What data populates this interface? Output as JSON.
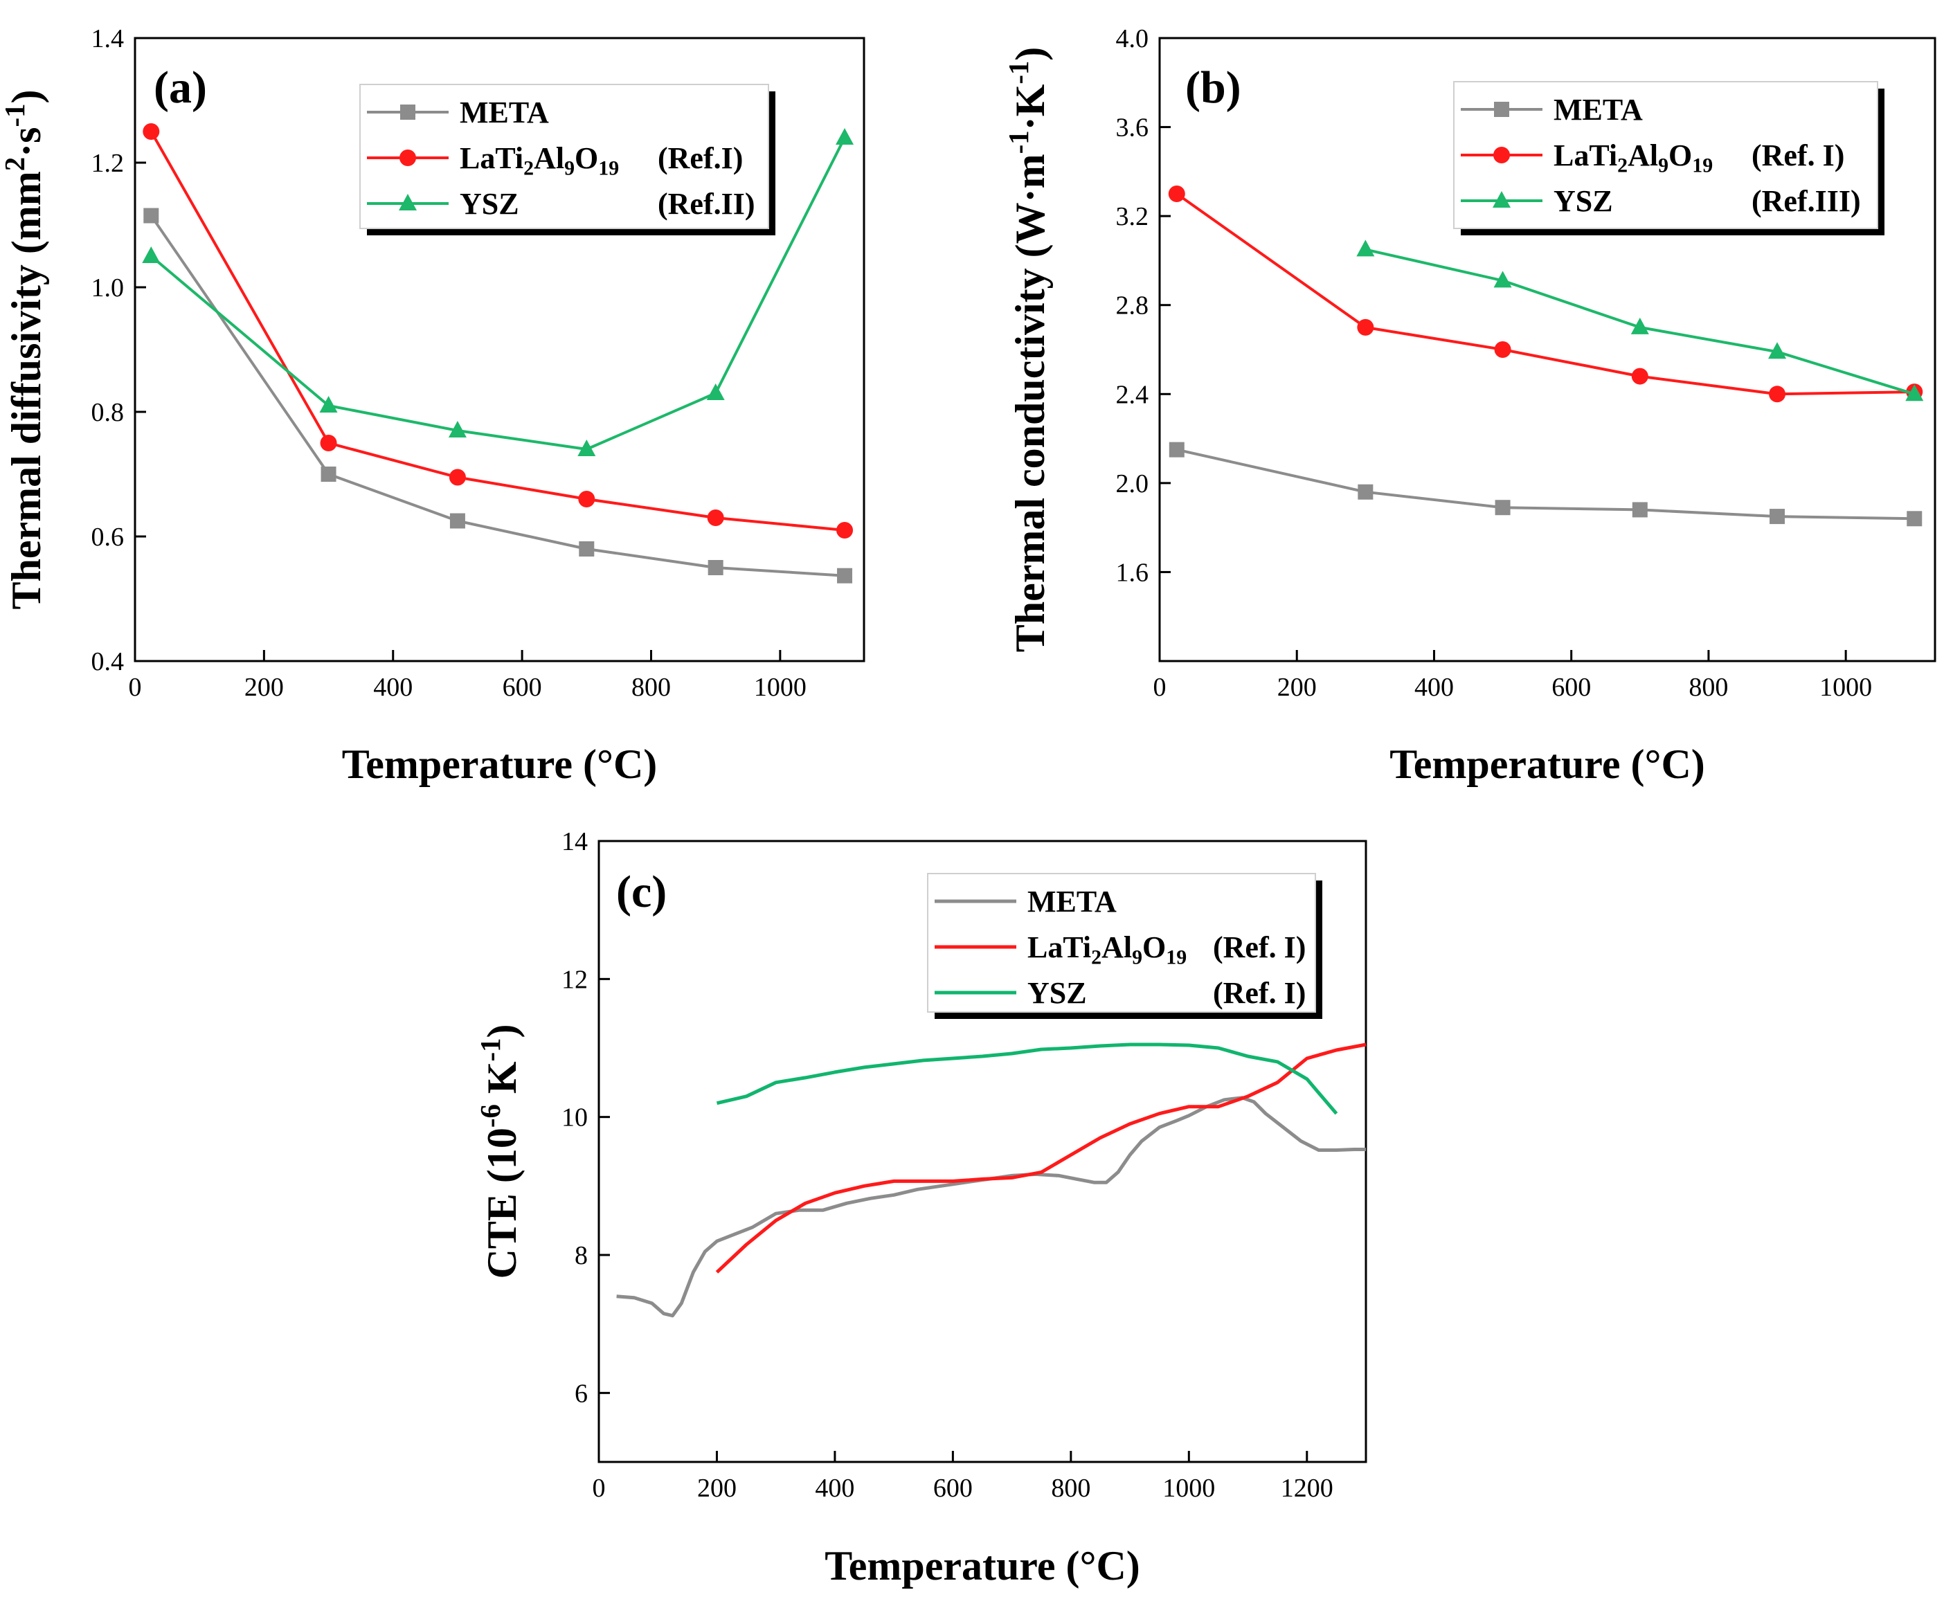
{
  "chart_data": [
    {
      "type": "line",
      "panel_label": "(a)",
      "xlabel": "Temperature (°C)",
      "ylabel": "Thermal diffusivity (mm²·s⁻¹)",
      "xlim": [
        0,
        1130
      ],
      "ylim": [
        0.4,
        1.4
      ],
      "xticks": [
        0,
        200,
        400,
        600,
        800,
        1000
      ],
      "yticks": [
        0.4,
        0.6,
        0.8,
        1.0,
        1.2,
        1.4
      ],
      "ytick_labels": [
        "0.4",
        "0.6",
        "0.8",
        "1.0",
        "1.2",
        "1.4"
      ],
      "legend_position": "top-right",
      "series": [
        {
          "name": "META",
          "ref": "",
          "color": "#8c8c8c",
          "marker": "square",
          "x": [
            25,
            300,
            500,
            700,
            900,
            1100
          ],
          "y": [
            1.115,
            0.7,
            0.625,
            0.58,
            0.55,
            0.537
          ]
        },
        {
          "name": "LaTi₂Al₉O₁₉",
          "ref": "(Ref.I)",
          "color": "#ff1a1a",
          "marker": "circle",
          "x": [
            25,
            300,
            500,
            700,
            900,
            1100
          ],
          "y": [
            1.25,
            0.75,
            0.695,
            0.66,
            0.63,
            0.61
          ]
        },
        {
          "name": "YSZ",
          "ref": "(Ref.II)",
          "color": "#1db86a",
          "marker": "triangle",
          "x": [
            25,
            300,
            500,
            700,
            900,
            1100
          ],
          "y": [
            1.05,
            0.81,
            0.77,
            0.74,
            0.83,
            1.24
          ]
        }
      ]
    },
    {
      "type": "line",
      "panel_label": "(b)",
      "xlabel": "Temperature (°C)",
      "ylabel": "Thermal conductivity (W·m⁻¹·K⁻¹)",
      "xlim": [
        0,
        1130
      ],
      "ylim": [
        1.2,
        4.0
      ],
      "xticks": [
        0,
        200,
        400,
        600,
        800,
        1000
      ],
      "yticks": [
        1.6,
        2.0,
        2.4,
        2.8,
        3.2,
        3.6,
        4.0
      ],
      "ytick_labels": [
        "1.6",
        "2.0",
        "2.4",
        "2.8",
        "3.2",
        "3.6",
        "4.0"
      ],
      "legend_position": "top-right",
      "series": [
        {
          "name": "META",
          "ref": "",
          "color": "#8c8c8c",
          "marker": "square",
          "x": [
            25,
            300,
            500,
            700,
            900,
            1100
          ],
          "y": [
            2.15,
            1.96,
            1.89,
            1.88,
            1.85,
            1.84
          ]
        },
        {
          "name": "LaTi₂Al₉O₁₉",
          "ref": "(Ref. I)",
          "color": "#ff1a1a",
          "marker": "circle",
          "x": [
            25,
            300,
            500,
            700,
            900,
            1100
          ],
          "y": [
            3.3,
            2.7,
            2.6,
            2.48,
            2.4,
            2.41
          ]
        },
        {
          "name": "YSZ",
          "ref": "(Ref.III)",
          "color": "#1db86a",
          "marker": "triangle",
          "x": [
            300,
            500,
            700,
            900,
            1100
          ],
          "y": [
            3.05,
            2.91,
            2.7,
            2.59,
            2.4
          ]
        }
      ]
    },
    {
      "type": "line",
      "panel_label": "(c)",
      "xlabel": "Temperature (°C)",
      "ylabel": "CTE (10⁻⁶ K⁻¹)",
      "xlim": [
        0,
        1300
      ],
      "ylim": [
        5,
        14
      ],
      "xticks": [
        0,
        200,
        400,
        600,
        800,
        1000,
        1200
      ],
      "yticks": [
        6,
        8,
        10,
        12,
        14
      ],
      "ytick_labels": [
        "6",
        "8",
        "10",
        "12",
        "14"
      ],
      "legend_position": "top-right",
      "series": [
        {
          "name": "META",
          "ref": "",
          "color": "#8c8c8c",
          "marker": "none",
          "x": [
            30,
            60,
            90,
            110,
            125,
            140,
            160,
            180,
            200,
            230,
            260,
            300,
            340,
            380,
            420,
            460,
            500,
            540,
            580,
            620,
            660,
            700,
            740,
            780,
            810,
            840,
            860,
            880,
            900,
            920,
            950,
            980,
            1000,
            1030,
            1060,
            1090,
            1110,
            1130,
            1160,
            1190,
            1220,
            1250,
            1280,
            1300
          ],
          "y": [
            7.4,
            7.38,
            7.3,
            7.15,
            7.12,
            7.3,
            7.75,
            8.05,
            8.2,
            8.3,
            8.4,
            8.6,
            8.65,
            8.65,
            8.75,
            8.82,
            8.87,
            8.95,
            9.0,
            9.05,
            9.1,
            9.15,
            9.17,
            9.15,
            9.1,
            9.05,
            9.05,
            9.2,
            9.45,
            9.65,
            9.85,
            9.95,
            10.02,
            10.15,
            10.25,
            10.28,
            10.22,
            10.05,
            9.85,
            9.65,
            9.52,
            9.52,
            9.53,
            9.53
          ]
        },
        {
          "name": "LaTi₂Al₉O₁₉",
          "ref": "(Ref. I)",
          "color": "#ff1a1a",
          "marker": "none",
          "x": [
            200,
            250,
            300,
            350,
            400,
            450,
            500,
            550,
            600,
            650,
            700,
            750,
            800,
            850,
            900,
            950,
            1000,
            1050,
            1100,
            1150,
            1200,
            1250,
            1300
          ],
          "y": [
            7.75,
            8.15,
            8.5,
            8.75,
            8.9,
            9.0,
            9.07,
            9.07,
            9.07,
            9.1,
            9.12,
            9.2,
            9.45,
            9.7,
            9.9,
            10.05,
            10.15,
            10.15,
            10.3,
            10.5,
            10.85,
            10.97,
            11.05
          ]
        },
        {
          "name": "YSZ",
          "ref": "(Ref. I)",
          "color": "#11b56e",
          "marker": "none",
          "x": [
            200,
            250,
            300,
            350,
            400,
            450,
            500,
            550,
            600,
            650,
            700,
            750,
            800,
            850,
            900,
            950,
            1000,
            1050,
            1100,
            1150,
            1200,
            1230,
            1250
          ],
          "y": [
            10.2,
            10.3,
            10.5,
            10.57,
            10.65,
            10.72,
            10.77,
            10.82,
            10.85,
            10.88,
            10.92,
            10.98,
            11.0,
            11.03,
            11.05,
            11.05,
            11.04,
            11.0,
            10.88,
            10.8,
            10.55,
            10.25,
            10.05
          ]
        }
      ]
    }
  ]
}
